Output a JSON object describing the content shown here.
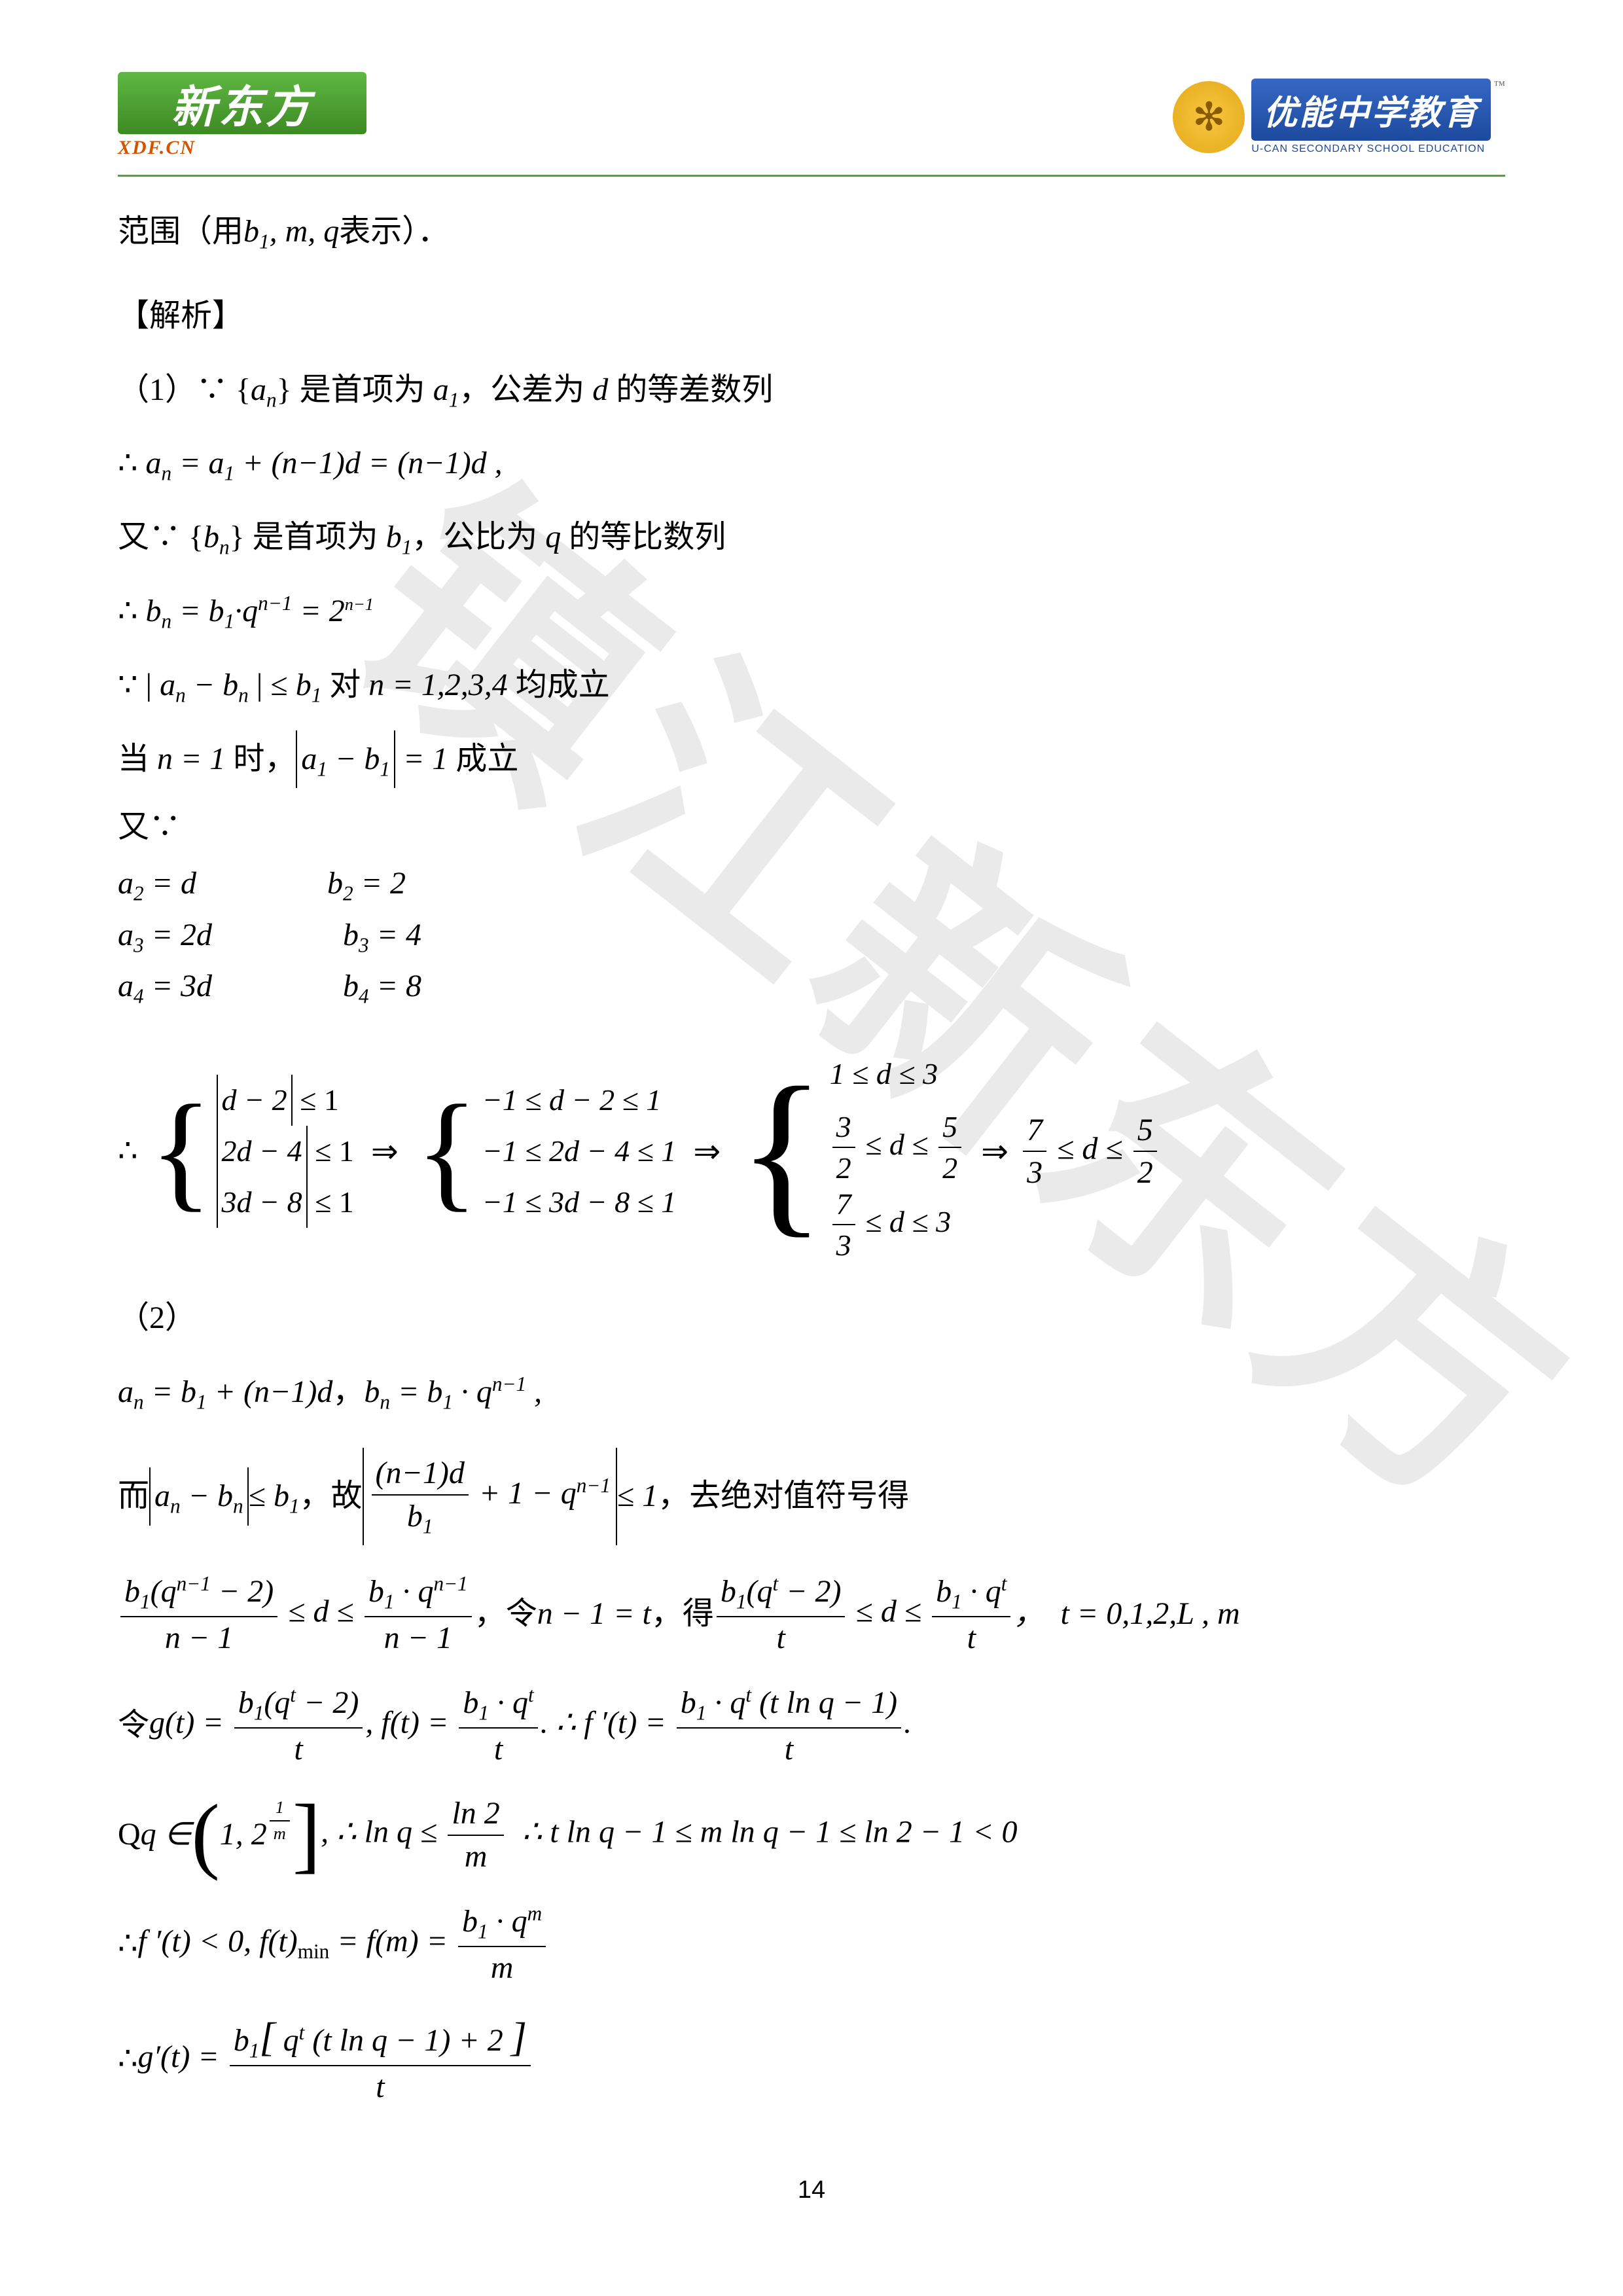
{
  "header": {
    "logo_left_main": "新东方",
    "logo_left_sub": "XDF.CN",
    "logo_right_main": "优能中学教育",
    "logo_right_sub": "U-CAN SECONDARY SCHOOL EDUCATION",
    "trademark": "™"
  },
  "watermark": "镇江新东方",
  "lines": {
    "l1_prefix": "范围（用",
    "l1_math": "b₁, m, q",
    "l1_suffix": "表示）．",
    "l2": "【解析】",
    "l3_a": "（1）∵ {",
    "l3_b": "} 是首项为 ",
    "l3_c": "，公差为 ",
    "l3_d": " 的等差数列",
    "l4": "∴ ",
    "l5_a": "又∵ {",
    "l5_b": "} 是首项为 ",
    "l5_c": "，公比为 ",
    "l5_d": " 的等比数列",
    "l6": "∴ ",
    "l7_a": "∵ |",
    "l7_b": "| ≤ ",
    "l7_c": " 对 ",
    "l7_d": " 均成立",
    "l8_a": "当 ",
    "l8_b": " 时，",
    "l8_c": " 成立",
    "l9": "又∵",
    "l10": "∴",
    "part2": "（2）",
    "l11_sep": "，",
    "l12_a": "而 ",
    "l12_b": " ，故 ",
    "l12_c": " ，去绝对值符号得",
    "l13_a": " ，令 ",
    "l13_b": " ，得 ",
    "l14_a": "令 ",
    "l15_a": "Q ",
    "l16": "∴ ",
    "l17": "∴ "
  },
  "mathvals": {
    "an": "a",
    "bn": "b",
    "nsub": "n",
    "a1": "a",
    "sub1": "1",
    "d": "d",
    "q": "q",
    "m": "m",
    "t": "t",
    "eq_an": "aₙ = a₁ + (n−1)d = (n−1)d ,",
    "eq_bn": "bₙ = b₁·qⁿ⁻¹ = 2",
    "exp_nminus1_small": "n−1",
    "n1234": "n = 1,2,3,4",
    "n_eq_1": "n = 1",
    "abs_a1b1": "|a₁ − b₁| = 1",
    "a2d": "a₂ = d",
    "b2": "b₂ = 2",
    "a3d": "a₃ = 2d",
    "b3": "b₃ = 4",
    "a4d": "a₄ = 3d",
    "b4": "b₄ = 8",
    "sys1_1": "|d − 2| ≤ 1",
    "sys1_2": "|2d − 4| ≤ 1",
    "sys1_3": "|3d − 8| ≤ 1",
    "sys2_1": "−1 ≤ d − 2 ≤ 1",
    "sys2_2": "−1 ≤ 2d − 4 ≤ 1",
    "sys2_3": "−1 ≤ 3d − 8 ≤ 1",
    "sys3_1": "1 ≤ d ≤ 3",
    "sys3_3": " ≤ d ≤ 3",
    "final_d": " ≤ d ≤ ",
    "f32": "3",
    "f22": "2",
    "f52": "5",
    "f72": "7",
    "f73": "7",
    "f33": "3",
    "part2_an": "aₙ = b₁ + (n−1)d",
    "part2_bn": "bₙ = b₁ · qⁿ⁻¹ ,",
    "abs_anbn": "|aₙ − bₙ| ≤ b₁",
    "frac_mid_num": "(n−1)d",
    "frac_mid_den": "b₁",
    "plus_term": "+ 1 − qⁿ⁻¹",
    "le1": " ≤ 1",
    "line13_l_num": "b₁(qⁿ⁻¹ − 2)",
    "line13_l_den": "n − 1",
    "le_d_le": " ≤ d ≤ ",
    "line13_r_num": "b₁ · qⁿ⁻¹",
    "line13_r_den": "n − 1",
    "let_nm1": "n − 1 = t",
    "line13b_l_num": "b₁(qᵗ − 2)",
    "line13b_l_den": "t",
    "line13b_r_num": "b₁ · qᵗ",
    "line13b_r_den": "t",
    "t_range": "t = 0,1,2,L , m",
    "gt_eq": "g(t) = ",
    "gt_num": "b₁(qᵗ − 2)",
    "gt_den": "t",
    "ft_eq": ", f(t) = ",
    "ft_num": "b₁ · qᵗ",
    "ft_den": "t",
    "fprime_eq": ". ∴ f ′(t) = ",
    "fprime_num": "b₁ · qᵗ (t ln q − 1)",
    "fprime_den": "t",
    "q_in": "q ∈ ",
    "interval_1": "1, 2",
    "exp_1_over_m_num": "1",
    "exp_1_over_m_den": "m",
    "lnq_le": ", ∴ ln q ≤ ",
    "ln2_num": "ln 2",
    "ln2_den": "m",
    "chain": " ∴ t ln q − 1 ≤ m ln q − 1 ≤ ln 2 − 1 < 0",
    "fprime_lt0": "f ′(t) < 0, f(t)",
    "min_sub": "min",
    "eq_fm": " = f(m) = ",
    "fm_num": "b₁ · qᵐ",
    "fm_den": "m",
    "gprime": "g′(t) = ",
    "gprime_num": "b₁[ qᵗ (t ln q − 1) + 2 ]",
    "gprime_den": "t"
  },
  "page_number": "14",
  "colors": {
    "accent_green": "#4ba82e",
    "logo_orange": "#d35400",
    "logo_blue": "#1d4a9e",
    "text": "#000000",
    "background": "#ffffff",
    "watermark": "rgba(160,160,160,0.22)"
  }
}
